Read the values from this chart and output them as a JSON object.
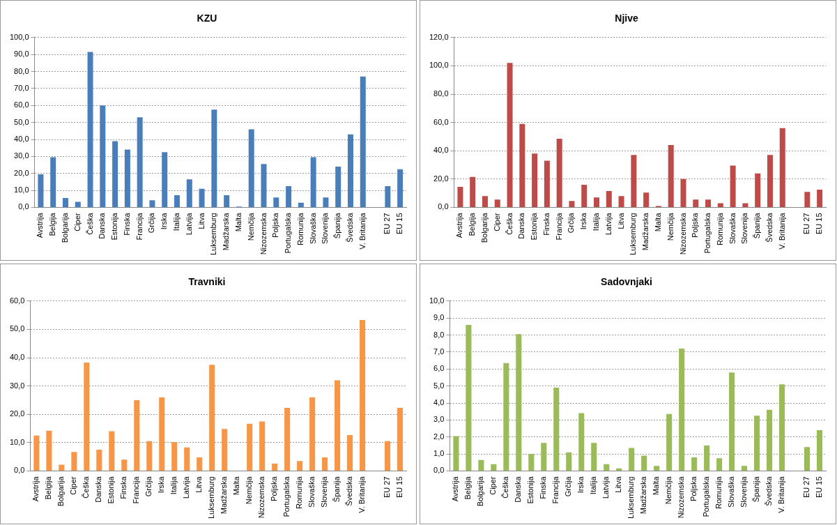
{
  "chart_data": [
    {
      "type": "bar",
      "title": "KZU",
      "categories": [
        "Avstrija",
        "Belgija",
        "Bolgarija",
        "Ciper",
        "Češka",
        "Danska",
        "Estonija",
        "Finska",
        "Francija",
        "Grčija",
        "Irska",
        "Italija",
        "Latvija",
        "Litva",
        "Luksemburg",
        "Madžarska",
        "Malta",
        "Nemčija",
        "Nizozemska",
        "Poljska",
        "Portugalska",
        "Romunija",
        "Slovaška",
        "Slovenija",
        "Španija",
        "Švedska",
        "V. Britanija",
        null,
        "EU 27",
        "EU 15"
      ],
      "values": [
        19.5,
        29.5,
        5.5,
        3.3,
        91.5,
        60,
        39,
        34,
        53,
        4.2,
        32.5,
        7.2,
        16.5,
        11,
        57.5,
        7.2,
        0.5,
        46,
        25.5,
        5.8,
        12.5,
        2.8,
        29.5,
        5.8,
        24,
        43,
        77,
        null,
        12.5,
        22.5
      ],
      "color": "#4a7ebb",
      "ylim": [
        0,
        100
      ],
      "yticks": [
        {
          "value": 0,
          "label": "0,0"
        },
        {
          "value": 10,
          "label": "10,0"
        },
        {
          "value": 20,
          "label": "20,0"
        },
        {
          "value": 30,
          "label": "30,0"
        },
        {
          "value": 40,
          "label": "40,0"
        },
        {
          "value": 50,
          "label": "50,0"
        },
        {
          "value": 60,
          "label": "60,0"
        },
        {
          "value": 70,
          "label": "70,0"
        },
        {
          "value": 80,
          "label": "80,0"
        },
        {
          "value": 90,
          "label": "90,0"
        },
        {
          "value": 100,
          "label": "100,0"
        }
      ],
      "grid": "y"
    },
    {
      "type": "bar",
      "title": "Njive",
      "categories": [
        "Avstrija",
        "Belgija",
        "Bolgarija",
        "Ciper",
        "Češka",
        "Danska",
        "Estonija",
        "Finska",
        "Francija",
        "Grčija",
        "Irska",
        "Italija",
        "Latvija",
        "Litva",
        "Luksemburg",
        "Madžarska",
        "Malta",
        "Nemčija",
        "Nizozemska",
        "Poljska",
        "Portugalska",
        "Romunija",
        "Slovaška",
        "Slovenija",
        "Španija",
        "Švedska",
        "V. Britanija",
        null,
        "EU 27",
        "EU 15"
      ],
      "values": [
        14.5,
        21.5,
        8,
        5.5,
        102,
        59,
        38,
        33,
        48.5,
        4.5,
        16,
        7,
        11.5,
        8,
        37,
        10.5,
        1,
        44,
        20,
        5.5,
        5.5,
        3,
        29.5,
        3,
        24,
        37,
        56,
        null,
        11,
        12.5
      ],
      "color": "#be4b48",
      "ylim": [
        0,
        120
      ],
      "yticks": [
        {
          "value": 0,
          "label": "0,0"
        },
        {
          "value": 20,
          "label": "20,0"
        },
        {
          "value": 40,
          "label": "40,0"
        },
        {
          "value": 60,
          "label": "60,0"
        },
        {
          "value": 80,
          "label": "80,0"
        },
        {
          "value": 100,
          "label": "100,0"
        },
        {
          "value": 120,
          "label": "120,0"
        }
      ],
      "grid": "y"
    },
    {
      "type": "bar",
      "title": "Travniki",
      "categories": [
        "Avstrija",
        "Belgija",
        "Bolgarija",
        "Ciper",
        "Češka",
        "Danska",
        "Estonija",
        "Finska",
        "Francija",
        "Grčija",
        "Irska",
        "Italija",
        "Latvija",
        "Litva",
        "Luksemburg",
        "Madžarska",
        "Malta",
        "Nemčija",
        "Nizozemska",
        "Poljska",
        "Portugalska",
        "Romunija",
        "Slovaška",
        "Slovenija",
        "Španija",
        "Švedska",
        "V. Britanija",
        null,
        "EU 27",
        "EU 15"
      ],
      "values": [
        12.5,
        14.2,
        2.2,
        6.7,
        38.3,
        7.5,
        14,
        4,
        25,
        10.5,
        26,
        10.2,
        8.3,
        4.8,
        37.5,
        14.8,
        0,
        16.7,
        17.5,
        2.6,
        22.3,
        3.5,
        26,
        4.8,
        32,
        12.7,
        53.3,
        null,
        10.5,
        22.3
      ],
      "color": "#f79646",
      "ylim": [
        0,
        60
      ],
      "yticks": [
        {
          "value": 0,
          "label": "0,0"
        },
        {
          "value": 10,
          "label": "10,0"
        },
        {
          "value": 20,
          "label": "20,0"
        },
        {
          "value": 30,
          "label": "30,0"
        },
        {
          "value": 40,
          "label": "40,0"
        },
        {
          "value": 50,
          "label": "50,0"
        },
        {
          "value": 60,
          "label": "60,0"
        }
      ],
      "grid": "y"
    },
    {
      "type": "bar",
      "title": "Sadovnjaki",
      "categories": [
        "Avstrija",
        "Belgija",
        "Bolgarija",
        "Ciper",
        "Češka",
        "Danska",
        "Estonija",
        "Finska",
        "Francija",
        "Grčija",
        "Irska",
        "Italija",
        "Latvija",
        "Litva",
        "Luksemburg",
        "Madžarska",
        "Malta",
        "Nemčija",
        "Nizozemska",
        "Poljska",
        "Portugalska",
        "Romunija",
        "Slovaška",
        "Slovenija",
        "Španija",
        "Švedska",
        "V. Britanija",
        null,
        "EU 27",
        "EU 15"
      ],
      "values": [
        2.05,
        8.6,
        0.65,
        0.4,
        6.35,
        8.05,
        1,
        1.65,
        4.9,
        1.1,
        3.4,
        1.65,
        0.4,
        0.15,
        1.35,
        0.9,
        0.3,
        3.35,
        7.2,
        0.8,
        1.5,
        0.75,
        5.8,
        0.3,
        3.25,
        3.6,
        5.1,
        null,
        1.4,
        2.4
      ],
      "color": "#9bbb59",
      "ylim": [
        0,
        10
      ],
      "yticks": [
        {
          "value": 0,
          "label": "0,0"
        },
        {
          "value": 1,
          "label": "1,0"
        },
        {
          "value": 2,
          "label": "2,0"
        },
        {
          "value": 3,
          "label": "3,0"
        },
        {
          "value": 4,
          "label": "4,0"
        },
        {
          "value": 5,
          "label": "5,0"
        },
        {
          "value": 6,
          "label": "6,0"
        },
        {
          "value": 7,
          "label": "7,0"
        },
        {
          "value": 8,
          "label": "8,0"
        },
        {
          "value": 9,
          "label": "9,0"
        },
        {
          "value": 10,
          "label": "10,0"
        }
      ],
      "grid": "y"
    }
  ]
}
